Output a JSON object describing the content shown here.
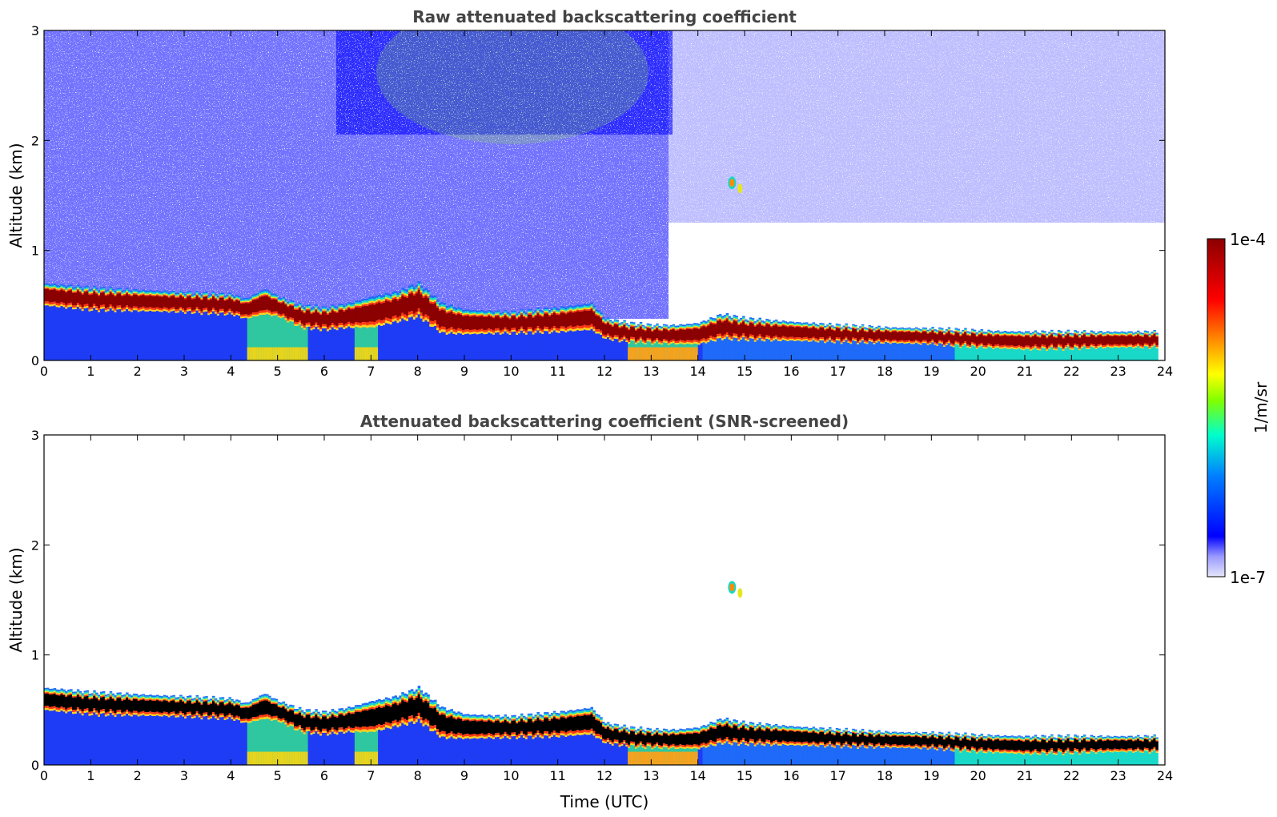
{
  "chart_data": [
    {
      "type": "heatmap",
      "title": "Raw attenuated backscattering coefficient",
      "xlabel": "",
      "ylabel": "Altitude (km)",
      "xlim": [
        0,
        24
      ],
      "ylim": [
        0,
        3
      ],
      "xticks": [
        "0",
        "1",
        "2",
        "3",
        "4",
        "5",
        "6",
        "7",
        "8",
        "9",
        "10",
        "11",
        "12",
        "13",
        "14",
        "15",
        "16",
        "17",
        "18",
        "19",
        "20",
        "21",
        "22",
        "23",
        "24"
      ],
      "yticks": [
        "0",
        "1",
        "2",
        "3"
      ],
      "screened": false,
      "layer": {
        "time_utc": [
          0,
          0.5,
          1,
          2,
          3,
          4,
          4.3,
          4.7,
          5,
          5.5,
          6,
          6.5,
          7,
          7.5,
          8,
          8.5,
          9,
          10,
          11,
          11.7,
          12,
          12.5,
          13,
          13.5,
          14,
          14.5,
          15,
          16,
          17,
          18,
          19,
          20,
          21,
          22,
          23,
          23.8
        ],
        "top_km": [
          0.7,
          0.68,
          0.66,
          0.64,
          0.62,
          0.6,
          0.56,
          0.65,
          0.58,
          0.5,
          0.48,
          0.52,
          0.58,
          0.62,
          0.7,
          0.52,
          0.46,
          0.44,
          0.48,
          0.52,
          0.38,
          0.34,
          0.32,
          0.32,
          0.34,
          0.42,
          0.38,
          0.35,
          0.32,
          0.3,
          0.29,
          0.27,
          0.26,
          0.26,
          0.26,
          0.26
        ],
        "base_km": [
          0.5,
          0.48,
          0.46,
          0.45,
          0.44,
          0.42,
          0.38,
          0.42,
          0.4,
          0.3,
          0.28,
          0.3,
          0.3,
          0.35,
          0.4,
          0.25,
          0.24,
          0.25,
          0.26,
          0.28,
          0.2,
          0.17,
          0.16,
          0.15,
          0.15,
          0.2,
          0.19,
          0.18,
          0.17,
          0.16,
          0.15,
          0.12,
          0.1,
          0.11,
          0.12,
          0.12
        ]
      },
      "feature": {
        "time_utc": 14.8,
        "altitude_km": 1.6
      }
    },
    {
      "type": "heatmap",
      "title": "Attenuated backscattering coefficient (SNR-screened)",
      "xlabel": "Time (UTC)",
      "ylabel": "Altitude (km)",
      "xlim": [
        0,
        24
      ],
      "ylim": [
        0,
        3
      ],
      "xticks": [
        "0",
        "1",
        "2",
        "3",
        "4",
        "5",
        "6",
        "7",
        "8",
        "9",
        "10",
        "11",
        "12",
        "13",
        "14",
        "15",
        "16",
        "17",
        "18",
        "19",
        "20",
        "21",
        "22",
        "23",
        "24"
      ],
      "yticks": [
        "0",
        "1",
        "2",
        "3"
      ],
      "screened": true,
      "feature": {
        "time_utc": 14.8,
        "altitude_km": 1.6
      }
    }
  ],
  "colorbar": {
    "min_label": "1e-7",
    "max_label": "1e-4",
    "unit_label": "1/m/sr",
    "colors": [
      "#e6e6fa",
      "#0000ff",
      "#00bfff",
      "#00ffcc",
      "#7fff00",
      "#ffff00",
      "#ff8c00",
      "#ff0000",
      "#8b0000"
    ]
  }
}
